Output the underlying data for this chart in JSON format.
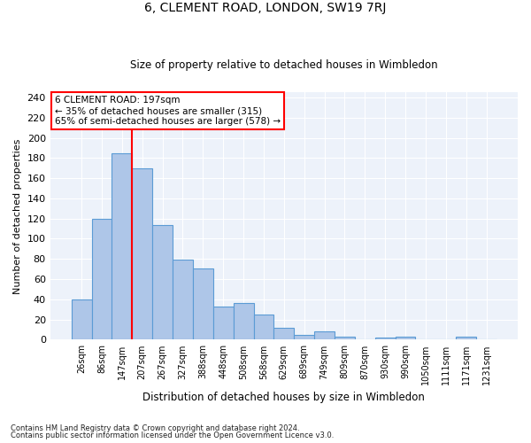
{
  "title": "6, CLEMENT ROAD, LONDON, SW19 7RJ",
  "subtitle": "Size of property relative to detached houses in Wimbledon",
  "xlabel": "Distribution of detached houses by size in Wimbledon",
  "ylabel": "Number of detached properties",
  "categories": [
    "26sqm",
    "86sqm",
    "147sqm",
    "207sqm",
    "267sqm",
    "327sqm",
    "388sqm",
    "448sqm",
    "508sqm",
    "568sqm",
    "629sqm",
    "689sqm",
    "749sqm",
    "809sqm",
    "870sqm",
    "930sqm",
    "990sqm",
    "1050sqm",
    "1111sqm",
    "1171sqm",
    "1231sqm"
  ],
  "values": [
    40,
    120,
    185,
    170,
    114,
    79,
    71,
    33,
    36,
    25,
    12,
    5,
    8,
    3,
    0,
    2,
    3,
    0,
    0,
    3,
    0
  ],
  "bar_color": "#aec6e8",
  "bar_edge_color": "#5b9bd5",
  "vline_color": "red",
  "vline_pos": 2.5,
  "annotation_text": "6 CLEMENT ROAD: 197sqm\n← 35% of detached houses are smaller (315)\n65% of semi-detached houses are larger (578) →",
  "annotation_box_color": "white",
  "annotation_box_edge_color": "red",
  "ylim": [
    0,
    245
  ],
  "yticks": [
    0,
    20,
    40,
    60,
    80,
    100,
    120,
    140,
    160,
    180,
    200,
    220,
    240
  ],
  "background_color": "#edf2fa",
  "grid_color": "white",
  "footer1": "Contains HM Land Registry data © Crown copyright and database right 2024.",
  "footer2": "Contains public sector information licensed under the Open Government Licence v3.0."
}
